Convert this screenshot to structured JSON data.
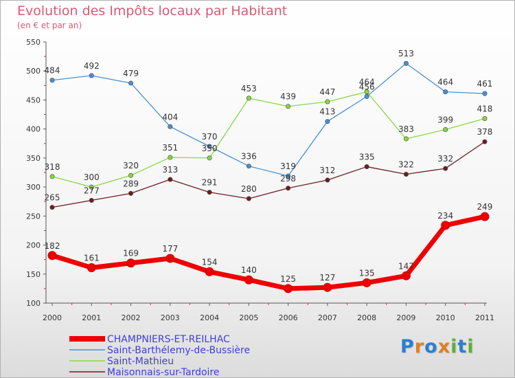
{
  "chart_data": {
    "type": "line",
    "title": "Evolution des Impôts locaux par Habitant",
    "subtitle": "(en € et par an)",
    "x": [
      "2000",
      "2001",
      "2002",
      "2003",
      "2004",
      "2005",
      "2006",
      "2007",
      "2008",
      "2009",
      "2010",
      "2011"
    ],
    "ylim": [
      100,
      550
    ],
    "yticks": [
      100,
      150,
      200,
      250,
      300,
      350,
      400,
      450,
      500,
      550
    ],
    "grid": false,
    "legend": "bottom-left",
    "series": [
      {
        "name": "CHAMPNIERS-ET-REILHAC",
        "color": "#ee0000",
        "values": [
          182,
          161,
          169,
          177,
          154,
          140,
          125,
          127,
          135,
          147,
          234,
          249
        ]
      },
      {
        "name": "Saint-Barthélemy-de-Bussière",
        "color": "#4a90d0",
        "values": [
          484,
          492,
          479,
          404,
          370,
          336,
          319,
          413,
          456,
          513,
          464,
          461
        ]
      },
      {
        "name": "Saint-Mathieu",
        "color": "#88d840",
        "values": [
          318,
          300,
          320,
          351,
          350,
          453,
          439,
          447,
          464,
          383,
          399,
          418
        ]
      },
      {
        "name": "Maisonnais-sur-Tardoire",
        "color": "#6b1f1f",
        "values": [
          265,
          277,
          289,
          313,
          291,
          280,
          298,
          312,
          335,
          322,
          332,
          378
        ]
      }
    ]
  },
  "logo": {
    "letters": [
      "P",
      "r",
      "o",
      "x",
      "i",
      "t",
      "i"
    ],
    "colors": [
      "#2a7fd0",
      "#e08020",
      "#2a7fd0",
      "#e08020",
      "#60b030",
      "#2a7fd0",
      "#60b030"
    ]
  }
}
